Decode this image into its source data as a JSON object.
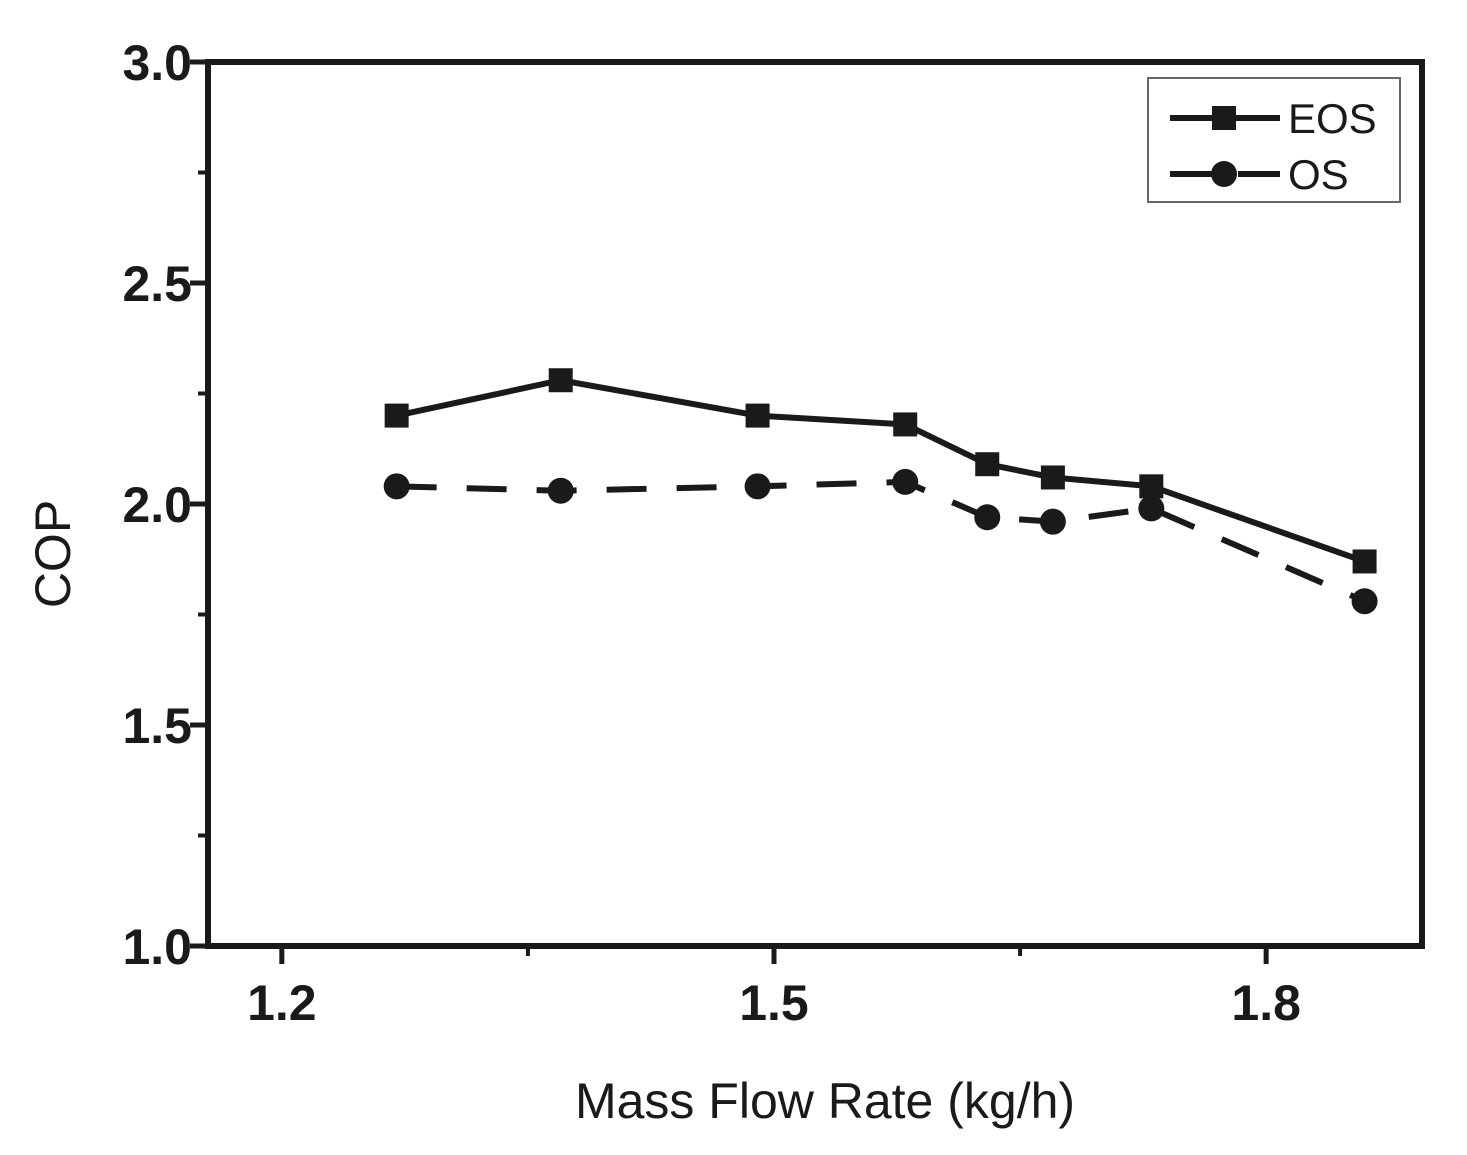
{
  "chart_data": {
    "type": "line",
    "title": "",
    "xlabel": "Mass Flow Rate (kg/h)",
    "ylabel": "COP",
    "xlim": [
      1.155,
      1.895
    ],
    "ylim": [
      1.0,
      3.0
    ],
    "x_major_ticks": [
      1.2,
      1.5,
      1.8
    ],
    "x_minor_ticks": [
      1.35,
      1.65
    ],
    "y_major_ticks": [
      1.0,
      1.5,
      2.0,
      2.5,
      3.0
    ],
    "y_minor_ticks": [
      1.25,
      1.75,
      2.25,
      2.75
    ],
    "x_tick_labels": [
      "1.2",
      "1.5",
      "1.8"
    ],
    "y_tick_labels": [
      "1.0",
      "1.5",
      "2.0",
      "2.5",
      "3.0"
    ],
    "grid": false,
    "legend_position": "top-right",
    "series": [
      {
        "name": "EOS",
        "line_style": "solid",
        "marker": "square",
        "color": "#1a1a1a",
        "x": [
          1.27,
          1.37,
          1.49,
          1.58,
          1.63,
          1.67,
          1.73,
          1.86
        ],
        "y": [
          2.2,
          2.28,
          2.2,
          2.18,
          2.09,
          2.06,
          2.04,
          1.87
        ]
      },
      {
        "name": "OS",
        "line_style": "dashed",
        "marker": "circle",
        "color": "#1a1a1a",
        "x": [
          1.27,
          1.37,
          1.49,
          1.58,
          1.63,
          1.67,
          1.73,
          1.86
        ],
        "y": [
          2.04,
          2.03,
          2.04,
          2.05,
          1.97,
          1.96,
          1.99,
          1.78
        ]
      }
    ]
  }
}
